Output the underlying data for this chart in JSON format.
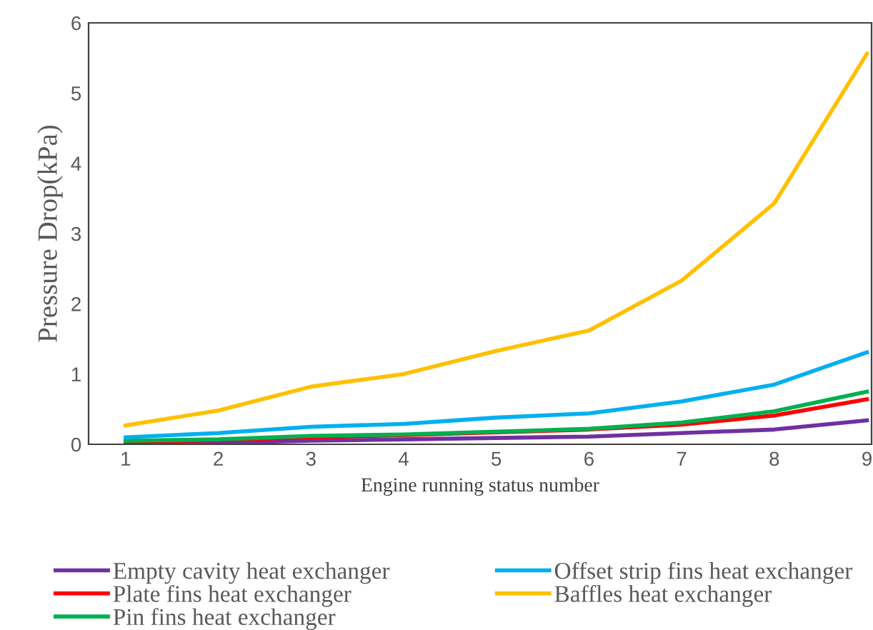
{
  "chart_data": {
    "type": "line",
    "xlabel": "Engine running status number",
    "ylabel": "Pressure Drop(kPa)",
    "x": [
      1,
      2,
      3,
      4,
      5,
      6,
      7,
      8,
      9
    ],
    "xlim": [
      0.6,
      9.05
    ],
    "xticks": [
      1,
      2,
      3,
      4,
      5,
      6,
      7,
      8,
      9
    ],
    "ylim": [
      0,
      6
    ],
    "yticks": [
      0,
      1,
      2,
      3,
      4,
      5,
      6
    ],
    "grid": false,
    "legend": "bottom",
    "marker": "none",
    "line_style": "solid",
    "series": [
      {
        "name": "Empty cavity heat exchanger",
        "color": "#7030a0",
        "values": [
          0.01,
          0.02,
          0.05,
          0.07,
          0.09,
          0.11,
          0.16,
          0.21,
          0.34
        ]
      },
      {
        "name": "Plate fins heat exchanger",
        "color": "#ff0000",
        "values": [
          0.03,
          0.06,
          0.1,
          0.13,
          0.17,
          0.21,
          0.28,
          0.41,
          0.64
        ]
      },
      {
        "name": "Pin fins heat exchanger",
        "color": "#00b050",
        "values": [
          0.05,
          0.07,
          0.12,
          0.14,
          0.18,
          0.22,
          0.31,
          0.47,
          0.75
        ]
      },
      {
        "name": "Offset strip fins heat exchanger",
        "color": "#00b0f0",
        "values": [
          0.1,
          0.16,
          0.25,
          0.29,
          0.38,
          0.44,
          0.61,
          0.85,
          1.31
        ]
      },
      {
        "name": "Baffles heat exchanger",
        "color": "#ffc000",
        "values": [
          0.27,
          0.48,
          0.82,
          1.0,
          1.33,
          1.62,
          2.33,
          3.43,
          5.56
        ]
      }
    ]
  }
}
